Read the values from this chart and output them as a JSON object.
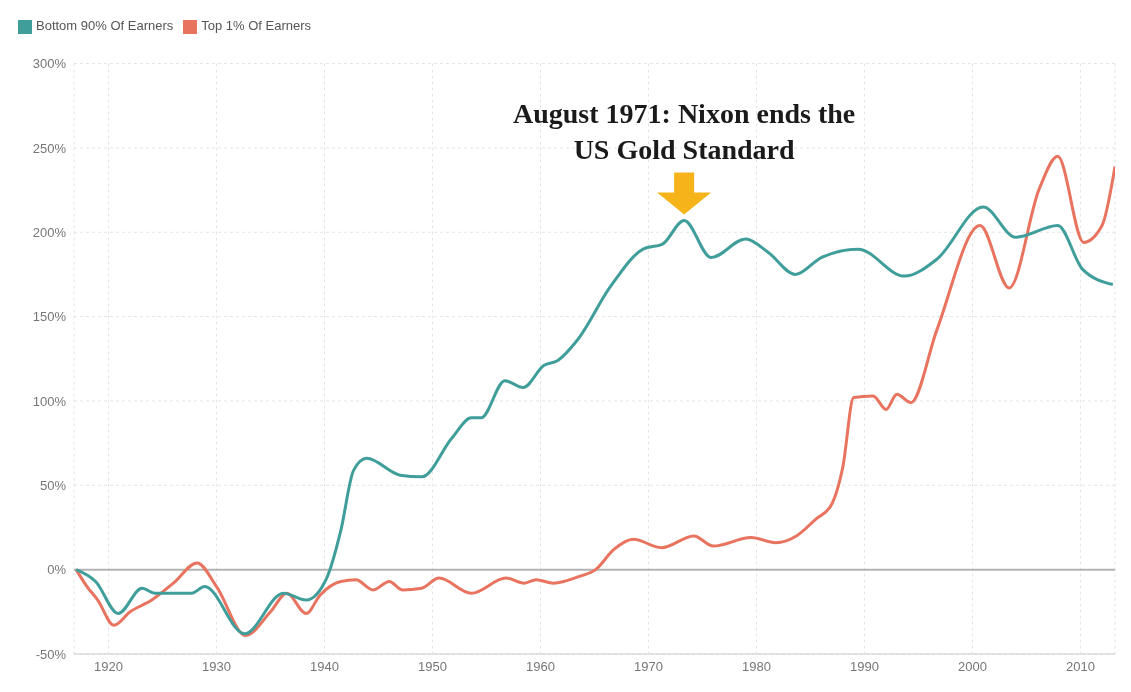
{
  "chart_data": {
    "type": "line",
    "annotations": [
      {
        "text": "August 1971: Nixon ends the US Gold Standard",
        "x": 1973.3,
        "y": 207
      }
    ],
    "xlim": [
      1916.8,
      2013.2
    ],
    "xticks": [
      1920,
      1930,
      1940,
      1950,
      1960,
      1970,
      1980,
      1990,
      2000,
      2010
    ],
    "ylim": [
      -50,
      300
    ],
    "yticks": [
      {
        "value": -50,
        "label": "-50%"
      },
      {
        "value": 0,
        "label": "0%"
      },
      {
        "value": 50,
        "label": "50%"
      },
      {
        "value": 100,
        "label": "100%"
      },
      {
        "value": 150,
        "label": "150%"
      },
      {
        "value": 200,
        "label": "200%"
      },
      {
        "value": 250,
        "label": "250%"
      },
      {
        "value": 300,
        "label": "300%"
      }
    ],
    "grid": true,
    "legend": "top left",
    "ref_lines": [
      {
        "axis": "y",
        "value": 0,
        "color": "#b3b3b3"
      }
    ],
    "series": [
      {
        "name": "Top 1% Of Earners",
        "color": "#e8735f",
        "x": [
          1917,
          1918,
          1919,
          1920.5,
          1922,
          1924,
          1926,
          1928.2,
          1930,
          1932.7,
          1935,
          1936.5,
          1938.3,
          1939.6,
          1941.5,
          1942.9,
          1944.5,
          1946,
          1947.2,
          1949,
          1950.6,
          1953.6,
          1956.8,
          1958.5,
          1959.6,
          1961.2,
          1963.6,
          1965.1,
          1966.8,
          1968.6,
          1971.2,
          1974.2,
          1976,
          1979.5,
          1981.8,
          1983.7,
          1985.5,
          1986.9,
          1988,
          1989,
          1990.8,
          1992,
          1993,
          1994.3,
          1996.7,
          2000.7,
          2003.4,
          2006.2,
          2007.9,
          2010.3,
          2012,
          2013.2
        ],
        "values": [
          0,
          -10,
          -18,
          -33,
          -25,
          -18,
          -8,
          4,
          -10,
          -39,
          -25,
          -14,
          -26,
          -15,
          -7,
          -6,
          -12,
          -7,
          -12,
          -11,
          -5,
          -14,
          -5,
          -8,
          -6,
          -8,
          -4,
          0,
          12,
          18,
          13,
          20,
          14,
          19,
          16,
          20,
          30,
          38,
          61,
          102,
          103,
          95,
          104,
          99,
          142,
          204,
          167,
          226,
          245,
          194,
          204,
          239
        ]
      },
      {
        "name": "Bottom 90% Of Earners",
        "color": "#3f9e9a",
        "x": [
          1917,
          1918.8,
          1920.9,
          1923.1,
          1924.3,
          1927.7,
          1928.9,
          1932.6,
          1936.2,
          1938.3,
          1940.2,
          1941.5,
          1942.7,
          1943.9,
          1947,
          1949,
          1951.8,
          1953.6,
          1954.5,
          1956.7,
          1958.4,
          1960.3,
          1961.6,
          1963.4,
          1966.5,
          1969.5,
          1971.3,
          1973.3,
          1975.8,
          1979,
          1981.1,
          1983.6,
          1986,
          1989.4,
          1993.7,
          1996.7,
          2001,
          2004,
          2007.9,
          2010.2,
          2013
        ],
        "values": [
          0,
          -7,
          -26,
          -11,
          -14,
          -14,
          -10,
          -38,
          -14,
          -18,
          -5,
          23,
          59,
          66,
          56,
          55,
          78,
          90,
          90,
          112,
          108,
          121,
          124,
          136,
          168,
          190,
          193,
          207,
          185,
          196,
          188,
          175,
          185,
          190,
          174,
          184,
          215,
          197,
          204,
          178,
          169
        ]
      }
    ]
  }
}
